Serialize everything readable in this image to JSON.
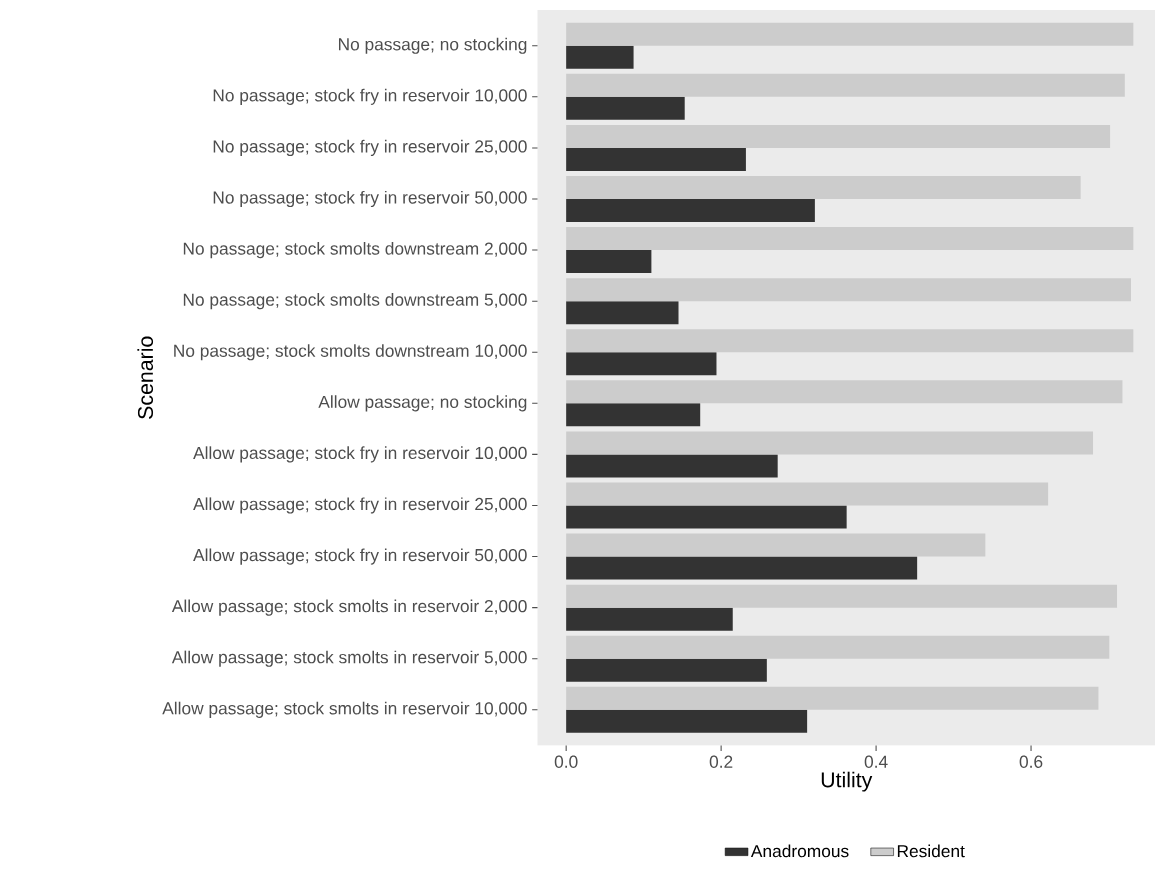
{
  "chart_data": {
    "type": "bar",
    "orientation": "horizontal",
    "xlabel": "Utility",
    "ylabel": "Scenario",
    "categories": [
      "No passage; no stocking",
      "No passage; stock fry in reservoir 10,000",
      "No passage; stock fry in reservoir 25,000",
      "No passage; stock fry in reservoir 50,000",
      "No passage; stock smolts downstream 2,000",
      "No passage; stock smolts downstream 5,000",
      "No passage; stock smolts downstream 10,000",
      "Allow passage; no stocking",
      "Allow passage; stock fry in reservoir 10,000",
      "Allow passage; stock fry in reservoir 25,000",
      "Allow passage; stock fry in reservoir 50,000",
      "Allow passage; stock smolts in reservoir 2,000",
      "Allow passage; stock smolts in reservoir 5,000",
      "Allow passage; stock smolts in reservoir 10,000"
    ],
    "series": [
      {
        "name": "Anadromous",
        "color": "#333333",
        "values": [
          0.087,
          0.153,
          0.232,
          0.321,
          0.11,
          0.145,
          0.194,
          0.173,
          0.273,
          0.362,
          0.453,
          0.215,
          0.259,
          0.311
        ]
      },
      {
        "name": "Resident",
        "color": "#cccccc",
        "values": [
          0.732,
          0.721,
          0.702,
          0.664,
          0.732,
          0.729,
          0.732,
          0.718,
          0.68,
          0.622,
          0.541,
          0.711,
          0.701,
          0.687
        ]
      }
    ],
    "xlim": [
      -0.037,
      0.76
    ],
    "xticks": [
      {
        "value": 0,
        "label": "0.0"
      },
      0.2,
      0.4,
      0.6
    ],
    "legend": "bottom"
  }
}
